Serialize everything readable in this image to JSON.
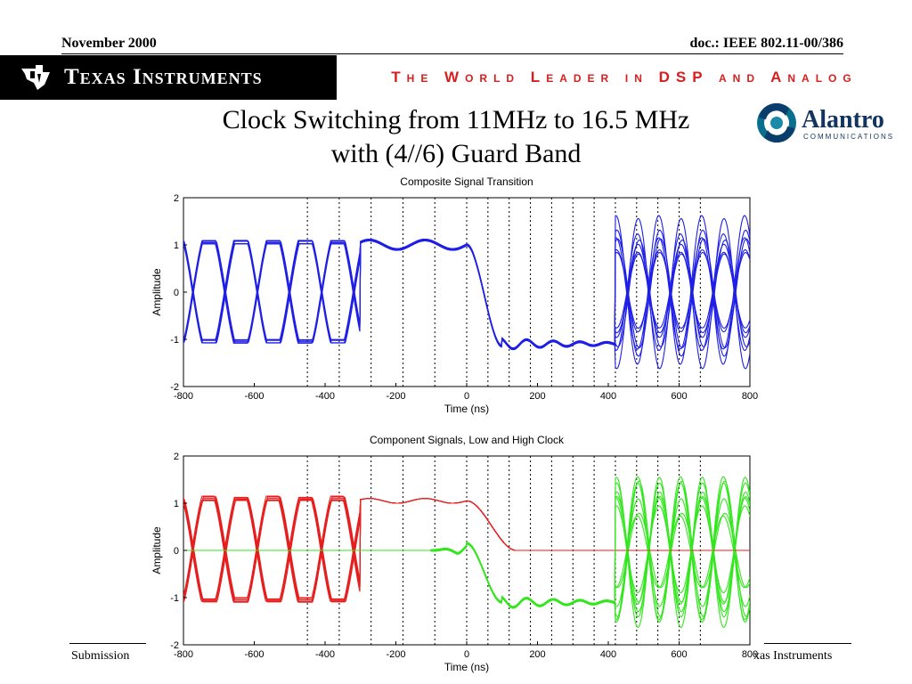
{
  "header": {
    "date": "November 2000",
    "doc": "doc.: IEEE 802.11-00/386"
  },
  "banner": {
    "company": "Texas Instruments",
    "slogan": "The World Leader in DSP and Analog"
  },
  "logo": {
    "name": "Alantro",
    "sub": "COMMUNICATIONS",
    "icon": "alantro-swirl-icon"
  },
  "title": {
    "line1": "Clock Switching from 11MHz to 16.5 MHz",
    "line2": "with (4//6) Guard Band"
  },
  "footer": {
    "left": "Submission",
    "right": "xas Instruments"
  },
  "chart_data": [
    {
      "type": "line",
      "title": "Composite Signal Transition",
      "xlabel": "Time (ns)",
      "ylabel": "Amplitude",
      "xlim": [
        -800,
        800
      ],
      "ylim": [
        -2,
        2
      ],
      "xticks": [
        -800,
        -600,
        -400,
        -200,
        0,
        200,
        400,
        600,
        800
      ],
      "yticks": [
        -2,
        -1,
        0,
        1,
        2
      ],
      "vlines": [
        -450,
        -360,
        -270,
        -180,
        -90,
        0,
        60,
        120,
        180,
        240,
        300,
        360,
        420,
        480,
        540,
        600,
        660
      ],
      "grid": false,
      "series": [
        {
          "name": "",
          "color": "#1f1fe6",
          "segments": [
            {
              "regime": "low-clock eye",
              "x_range": [
                -800,
                -300
              ],
              "period_ns": 90.9,
              "levels": [
                -1,
                1
              ]
            },
            {
              "regime": "transition",
              "x_range": [
                -300,
                420
              ]
            },
            {
              "regime": "high-clock eye",
              "x_range": [
                420,
                800
              ],
              "period_ns": 60.6,
              "levels": [
                -1,
                1
              ]
            }
          ]
        }
      ]
    },
    {
      "type": "line",
      "title": "Component Signals, Low and High Clock",
      "xlabel": "Time (ns)",
      "ylabel": "Amplitude",
      "xlim": [
        -800,
        800
      ],
      "ylim": [
        -2,
        2
      ],
      "xticks": [
        -800,
        -600,
        -400,
        -200,
        0,
        200,
        400,
        600,
        800
      ],
      "yticks": [
        -2,
        -1,
        0,
        1,
        2
      ],
      "vlines": [
        -450,
        -360,
        -270,
        -180,
        -90,
        0,
        60,
        120,
        180,
        240,
        300,
        360,
        420,
        480,
        540,
        600,
        660
      ],
      "grid": false,
      "series": [
        {
          "name": "",
          "color": "#e61e1e",
          "period_ns": 90.9,
          "x_range": [
            -800,
            150
          ]
        },
        {
          "name": "",
          "color": "#33e61e",
          "period_ns": 60.6,
          "x_range": [
            -800,
            800
          ]
        }
      ]
    }
  ]
}
